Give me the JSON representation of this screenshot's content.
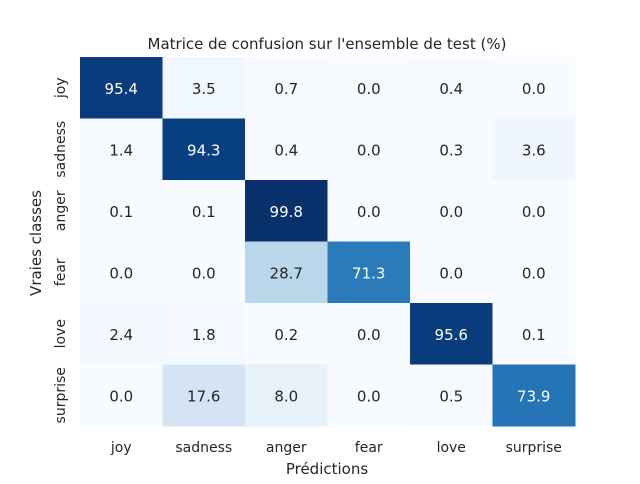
{
  "chart_data": {
    "type": "heatmap",
    "title": "Matrice de confusion sur l'ensemble de test (%)",
    "xlabel": "Prédictions",
    "ylabel": "Vraies classes",
    "x_categories": [
      "joy",
      "sadness",
      "anger",
      "fear",
      "love",
      "surprise"
    ],
    "y_categories": [
      "joy",
      "sadness",
      "anger",
      "fear",
      "love",
      "surprise"
    ],
    "values": [
      [
        95.4,
        3.5,
        0.7,
        0.0,
        0.4,
        0.0
      ],
      [
        1.4,
        94.3,
        0.4,
        0.0,
        0.3,
        3.6
      ],
      [
        0.1,
        0.1,
        99.8,
        0.0,
        0.0,
        0.0
      ],
      [
        0.0,
        0.0,
        28.7,
        71.3,
        0.0,
        0.0
      ],
      [
        2.4,
        1.8,
        0.2,
        0.0,
        95.6,
        0.1
      ],
      [
        0.0,
        17.6,
        8.0,
        0.0,
        0.5,
        73.9
      ]
    ],
    "value_range": [
      0,
      100
    ],
    "colormap": "Blues",
    "colorbar": false,
    "grid": false
  }
}
